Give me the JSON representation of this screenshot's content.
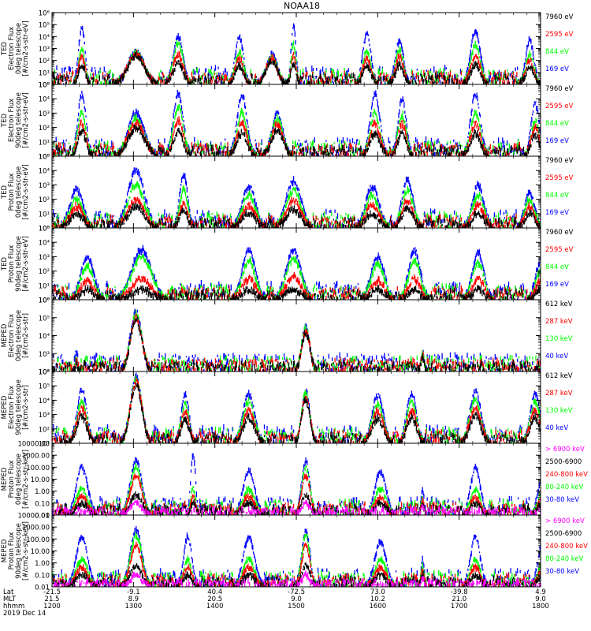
{
  "title": "NOAA18",
  "xaxis": {
    "rows": [
      {
        "label": "Lat",
        "values": [
          "-21.5",
          "-9.1",
          "40.4",
          "-72.5",
          "73.0",
          "-39.8",
          "4.9"
        ]
      },
      {
        "label": "MLT",
        "values": [
          "21.5",
          "8.9",
          "20.5",
          "9.0",
          "10.2",
          "21.0",
          "9.0"
        ]
      },
      {
        "label": "hhmm",
        "values": [
          "1200",
          "1300",
          "1400",
          "1500",
          "1600",
          "1700",
          "1800"
        ]
      }
    ],
    "date": "2019 Dec 14"
  },
  "colors": {
    "black": "#000000",
    "blue": "#0000ff",
    "red": "#ff0000",
    "green": "#00ff00",
    "magenta": "#ff00ff"
  },
  "chart_data": [
    {
      "type": "scatter",
      "ylabel": [
        "TED",
        "Electron Flux",
        "0deg telescope",
        "[#/cm2-s-str-eV]"
      ],
      "yscale": "log",
      "ylim": [
        1,
        1000000
      ],
      "yticks": [
        "10⁰",
        "10¹",
        "10²",
        "10³",
        "10⁴",
        "10⁵",
        "10⁶"
      ],
      "legend": [
        {
          "text": "7960 eV",
          "color": "black"
        },
        {
          "text": "2595 eV",
          "color": "red"
        },
        {
          "text": "844 eV",
          "color": "green"
        },
        {
          "text": "169 eV",
          "color": "blue"
        }
      ],
      "peaks": [
        {
          "x": 1222,
          "w": 4,
          "blue": 50000,
          "green": 800,
          "red": 200,
          "black": 40
        },
        {
          "x": 1302,
          "w": 10,
          "blue": 500,
          "green": 400,
          "red": 350,
          "black": 250
        },
        {
          "x": 1333,
          "w": 6,
          "blue": 10000,
          "green": 3000,
          "red": 300,
          "black": 60
        },
        {
          "x": 1418,
          "w": 5,
          "blue": 10000,
          "green": 500,
          "red": 150,
          "black": 40
        },
        {
          "x": 1442,
          "w": 7,
          "blue": 300,
          "green": 200,
          "red": 150,
          "black": 80
        },
        {
          "x": 1458,
          "w": 3,
          "blue": 100000,
          "green": 2000,
          "red": 300,
          "black": 60
        },
        {
          "x": 1552,
          "w": 5,
          "blue": 20000,
          "green": 500,
          "red": 150,
          "black": 40
        },
        {
          "x": 1576,
          "w": 5,
          "blue": 5000,
          "green": 800,
          "red": 200,
          "black": 40
        },
        {
          "x": 1712,
          "w": 6,
          "blue": 30000,
          "green": 2000,
          "red": 200,
          "black": 40
        },
        {
          "x": 1752,
          "w": 5,
          "blue": 5000,
          "green": 300,
          "red": 100,
          "black": 30
        }
      ]
    },
    {
      "type": "scatter",
      "ylabel": [
        "TED",
        "Electron Flux",
        "90deg telescope",
        "[#/cm2-s-str-eV]"
      ],
      "yscale": "log",
      "ylim": [
        1,
        100000
      ],
      "yticks": [
        "10⁰",
        "10¹",
        "10²",
        "10³",
        "10⁴",
        "10⁵"
      ],
      "legend": [
        {
          "text": "7960 eV",
          "color": "black"
        },
        {
          "text": "2595 eV",
          "color": "red"
        },
        {
          "text": "844 eV",
          "color": "green"
        },
        {
          "text": "169 eV",
          "color": "blue"
        }
      ],
      "peaks": [
        {
          "x": 1222,
          "w": 5,
          "blue": 20000,
          "green": 1000,
          "red": 200,
          "black": 60
        },
        {
          "x": 1302,
          "w": 10,
          "blue": 1000,
          "green": 400,
          "red": 200,
          "black": 100
        },
        {
          "x": 1333,
          "w": 6,
          "blue": 20000,
          "green": 3000,
          "red": 300,
          "black": 50
        },
        {
          "x": 1420,
          "w": 6,
          "blue": 20000,
          "green": 1000,
          "red": 200,
          "black": 40
        },
        {
          "x": 1446,
          "w": 7,
          "blue": 800,
          "green": 400,
          "red": 150,
          "black": 60
        },
        {
          "x": 1558,
          "w": 6,
          "blue": 20000,
          "green": 1000,
          "red": 200,
          "black": 40
        },
        {
          "x": 1578,
          "w": 5,
          "blue": 10000,
          "green": 800,
          "red": 200,
          "black": 40
        },
        {
          "x": 1712,
          "w": 6,
          "blue": 20000,
          "green": 1000,
          "red": 200,
          "black": 40
        },
        {
          "x": 1756,
          "w": 5,
          "blue": 5000,
          "green": 300,
          "red": 100,
          "black": 30
        }
      ]
    },
    {
      "type": "scatter",
      "ylabel": [
        "TED",
        "Proton Flux",
        "0deg telescope",
        "[#/cm2-s-str-eV]"
      ],
      "yscale": "log",
      "ylim": [
        1,
        100000
      ],
      "yticks": [
        "10⁰",
        "10¹",
        "10²",
        "10³",
        "10⁴",
        "10⁵"
      ],
      "legend": [
        {
          "text": "7960 eV",
          "color": "black"
        },
        {
          "text": "2595 eV",
          "color": "red"
        },
        {
          "text": "844 eV",
          "color": "green"
        },
        {
          "text": "169 eV",
          "color": "blue"
        }
      ],
      "peaks": [
        {
          "x": 1218,
          "w": 8,
          "blue": 500,
          "green": 100,
          "red": 30,
          "black": 10
        },
        {
          "x": 1302,
          "w": 10,
          "blue": 10000,
          "green": 1000,
          "red": 100,
          "black": 30
        },
        {
          "x": 1337,
          "w": 5,
          "blue": 5000,
          "green": 500,
          "red": 50,
          "black": 15
        },
        {
          "x": 1425,
          "w": 8,
          "blue": 800,
          "green": 200,
          "red": 40,
          "black": 10
        },
        {
          "x": 1458,
          "w": 9,
          "blue": 2000,
          "green": 400,
          "red": 80,
          "black": 20
        },
        {
          "x": 1556,
          "w": 8,
          "blue": 800,
          "green": 200,
          "red": 40,
          "black": 10
        },
        {
          "x": 1582,
          "w": 7,
          "blue": 2000,
          "green": 400,
          "red": 80,
          "black": 20
        },
        {
          "x": 1714,
          "w": 7,
          "blue": 1000,
          "green": 200,
          "red": 40,
          "black": 10
        },
        {
          "x": 1752,
          "w": 6,
          "blue": 300,
          "green": 100,
          "red": 30,
          "black": 10
        }
      ]
    },
    {
      "type": "scatter",
      "ylabel": [
        "TED",
        "Proton Flux",
        "90deg telescope",
        "[#/cm2-s-str-eV]"
      ],
      "yscale": "log",
      "ylim": [
        1,
        100000
      ],
      "yticks": [
        "10⁰",
        "10¹",
        "10²",
        "10³",
        "10⁴",
        "10⁵"
      ],
      "legend": [
        {
          "text": "7960 eV",
          "color": "black"
        },
        {
          "text": "2595 eV",
          "color": "red"
        },
        {
          "text": "844 eV",
          "color": "green"
        },
        {
          "text": "169 eV",
          "color": "blue"
        }
      ],
      "peaks": [
        {
          "x": 1226,
          "w": 8,
          "blue": 1000,
          "green": 200,
          "red": 20,
          "black": 5
        },
        {
          "x": 1306,
          "w": 12,
          "blue": 3000,
          "green": 1000,
          "red": 30,
          "black": 5
        },
        {
          "x": 1425,
          "w": 8,
          "blue": 3000,
          "green": 500,
          "red": 30,
          "black": 5
        },
        {
          "x": 1458,
          "w": 9,
          "blue": 3000,
          "green": 800,
          "red": 40,
          "black": 5
        },
        {
          "x": 1560,
          "w": 8,
          "blue": 1000,
          "green": 300,
          "red": 20,
          "black": 5
        },
        {
          "x": 1587,
          "w": 7,
          "blue": 3000,
          "green": 600,
          "red": 30,
          "black": 5
        },
        {
          "x": 1714,
          "w": 7,
          "blue": 2000,
          "green": 400,
          "red": 30,
          "black": 5
        },
        {
          "x": 1760,
          "w": 6,
          "blue": 500,
          "green": 100,
          "red": 20,
          "black": 5
        }
      ]
    },
    {
      "type": "scatter",
      "ylabel": [
        "MEPED",
        "Electron Flux",
        "0deg telescope",
        "[#/cm2-s-str]"
      ],
      "yscale": "log",
      "ylim": [
        100,
        1000000
      ],
      "yticks": [
        "10²",
        "10³",
        "10⁴",
        "10⁵",
        "10⁶"
      ],
      "legend": [
        {
          "text": "612 keV",
          "color": "black"
        },
        {
          "text": "287 keV",
          "color": "red"
        },
        {
          "text": "130 keV",
          "color": "green"
        },
        {
          "text": "40 keV",
          "color": "blue"
        }
      ],
      "peaks": [
        {
          "x": 1302,
          "w": 7,
          "blue": 200000,
          "green": 150000,
          "red": 110000,
          "black": 80000
        },
        {
          "x": 1218,
          "w": 2,
          "blue": 1500,
          "green": 400,
          "red": 300,
          "black": 250
        },
        {
          "x": 1467,
          "w": 5,
          "blue": 30000,
          "green": 25000,
          "red": 20000,
          "black": 15000
        },
        {
          "x": 1633,
          "w": 2,
          "blue": 1200,
          "green": 800,
          "red": 700,
          "black": 600
        }
      ]
    },
    {
      "type": "scatter",
      "ylabel": [
        "MEPED",
        "Electron Flux",
        "90deg telescope",
        "[#/cm2-s-str]"
      ],
      "yscale": "log",
      "ylim": [
        10,
        1000000
      ],
      "yticks": [
        "10¹",
        "10²",
        "10³",
        "10⁴",
        "10⁵",
        "10⁶"
      ],
      "legend": [
        {
          "text": "612 keV",
          "color": "black"
        },
        {
          "text": "287 keV",
          "color": "red"
        },
        {
          "text": "130 keV",
          "color": "green"
        },
        {
          "text": "40 keV",
          "color": "blue"
        }
      ],
      "peaks": [
        {
          "x": 1302,
          "w": 7,
          "blue": 400000,
          "green": 300000,
          "red": 200000,
          "black": 100000
        },
        {
          "x": 1222,
          "w": 6,
          "blue": 50000,
          "green": 10000,
          "red": 3000,
          "black": 800
        },
        {
          "x": 1338,
          "w": 5,
          "blue": 20000,
          "green": 5000,
          "red": 1500,
          "black": 500
        },
        {
          "x": 1425,
          "w": 7,
          "blue": 30000,
          "green": 8000,
          "red": 2000,
          "black": 600
        },
        {
          "x": 1467,
          "w": 5,
          "blue": 40000,
          "green": 30000,
          "red": 20000,
          "black": 10000
        },
        {
          "x": 1560,
          "w": 7,
          "blue": 20000,
          "green": 5000,
          "red": 1500,
          "black": 500
        },
        {
          "x": 1585,
          "w": 6,
          "blue": 30000,
          "green": 8000,
          "red": 2000,
          "black": 600
        },
        {
          "x": 1712,
          "w": 7,
          "blue": 40000,
          "green": 10000,
          "red": 3000,
          "black": 800
        },
        {
          "x": 1756,
          "w": 6,
          "blue": 30000,
          "green": 8000,
          "red": 2000,
          "black": 600
        }
      ]
    },
    {
      "type": "scatter",
      "ylabel": [
        "MEPED",
        "Proton Flux",
        "0deg telescope",
        "[#/cm2-s-str-keV]"
      ],
      "yscale": "log",
      "ylim": [
        0.01,
        10000
      ],
      "yticks": [
        "0.01",
        "0.10",
        "1.00",
        "10.00",
        "100.00",
        "1000.00",
        "10000.00"
      ],
      "legend": [
        {
          "text": "> 6900 keV",
          "color": "magenta"
        },
        {
          "text": "2500-6900",
          "color": "black"
        },
        {
          "text": "240-800 keV",
          "color": "red"
        },
        {
          "text": "80-240 keV",
          "color": "green"
        },
        {
          "text": "30-80 keV",
          "color": "blue"
        }
      ],
      "peaks": [
        {
          "x": 1302,
          "w": 7,
          "blue": 400,
          "green": 100,
          "red": 20,
          "black": 0.5,
          "magenta": 0.1
        },
        {
          "x": 1467,
          "w": 5,
          "blue": 300,
          "green": 100,
          "red": 20,
          "black": 0.5,
          "magenta": 0.1
        },
        {
          "x": 1222,
          "w": 7,
          "blue": 100,
          "green": 1.5,
          "red": 0.3,
          "black": 0.1
        },
        {
          "x": 1344,
          "w": 3,
          "blue": 1000,
          "green": 1.5,
          "red": 0.3,
          "black": 0.1
        },
        {
          "x": 1425,
          "w": 7,
          "blue": 50,
          "green": 1.5,
          "red": 0.3,
          "black": 0.1
        },
        {
          "x": 1562,
          "w": 7,
          "blue": 40,
          "green": 1.5,
          "red": 0.3,
          "black": 0.1
        },
        {
          "x": 1633,
          "w": 2,
          "blue": 1,
          "green": 0.3,
          "red": 0.2,
          "black": 0.1,
          "magenta": 0.05
        },
        {
          "x": 1712,
          "w": 6,
          "blue": 80,
          "green": 1.5,
          "red": 0.3,
          "black": 0.1
        },
        {
          "x": 1762,
          "w": 6,
          "blue": 30,
          "green": 1.5,
          "red": 0.3,
          "black": 0.1
        }
      ]
    },
    {
      "type": "scatter",
      "ylabel": [
        "MEPED",
        "Proton Flux",
        "90deg telescope",
        "[#/cm2-s-str-keV]"
      ],
      "yscale": "log",
      "ylim": [
        0.01,
        10000
      ],
      "yticks": [
        "0.01",
        "0.10",
        "1.00",
        "10.00",
        "100.00",
        "1000.00",
        "10000.00"
      ],
      "legend": [
        {
          "text": "> 6900 keV",
          "color": "magenta"
        },
        {
          "text": "2500-6900",
          "color": "black"
        },
        {
          "text": "240-800 keV",
          "color": "red"
        },
        {
          "text": "80-240 keV",
          "color": "green"
        },
        {
          "text": "30-80 keV",
          "color": "blue"
        }
      ],
      "peaks": [
        {
          "x": 1302,
          "w": 7,
          "blue": 600,
          "green": 200,
          "red": 30,
          "black": 0.6,
          "magenta": 0.1
        },
        {
          "x": 1467,
          "w": 5,
          "blue": 500,
          "green": 200,
          "red": 30,
          "black": 0.6,
          "magenta": 0.1
        },
        {
          "x": 1222,
          "w": 7,
          "blue": 150,
          "green": 2,
          "red": 0.4,
          "black": 0.1
        },
        {
          "x": 1340,
          "w": 5,
          "blue": 150,
          "green": 2,
          "red": 0.4,
          "black": 0.1
        },
        {
          "x": 1425,
          "w": 7,
          "blue": 150,
          "green": 2,
          "red": 0.4,
          "black": 0.1
        },
        {
          "x": 1562,
          "w": 7,
          "blue": 60,
          "green": 2,
          "red": 0.4,
          "black": 0.1
        },
        {
          "x": 1633,
          "w": 2,
          "blue": 2,
          "green": 0.4,
          "red": 0.3,
          "black": 0.1,
          "magenta": 0.05
        },
        {
          "x": 1712,
          "w": 6,
          "blue": 150,
          "green": 2,
          "red": 0.4,
          "black": 0.1
        },
        {
          "x": 1762,
          "w": 6,
          "blue": 100,
          "green": 2,
          "red": 0.4,
          "black": 0.1
        }
      ]
    }
  ]
}
